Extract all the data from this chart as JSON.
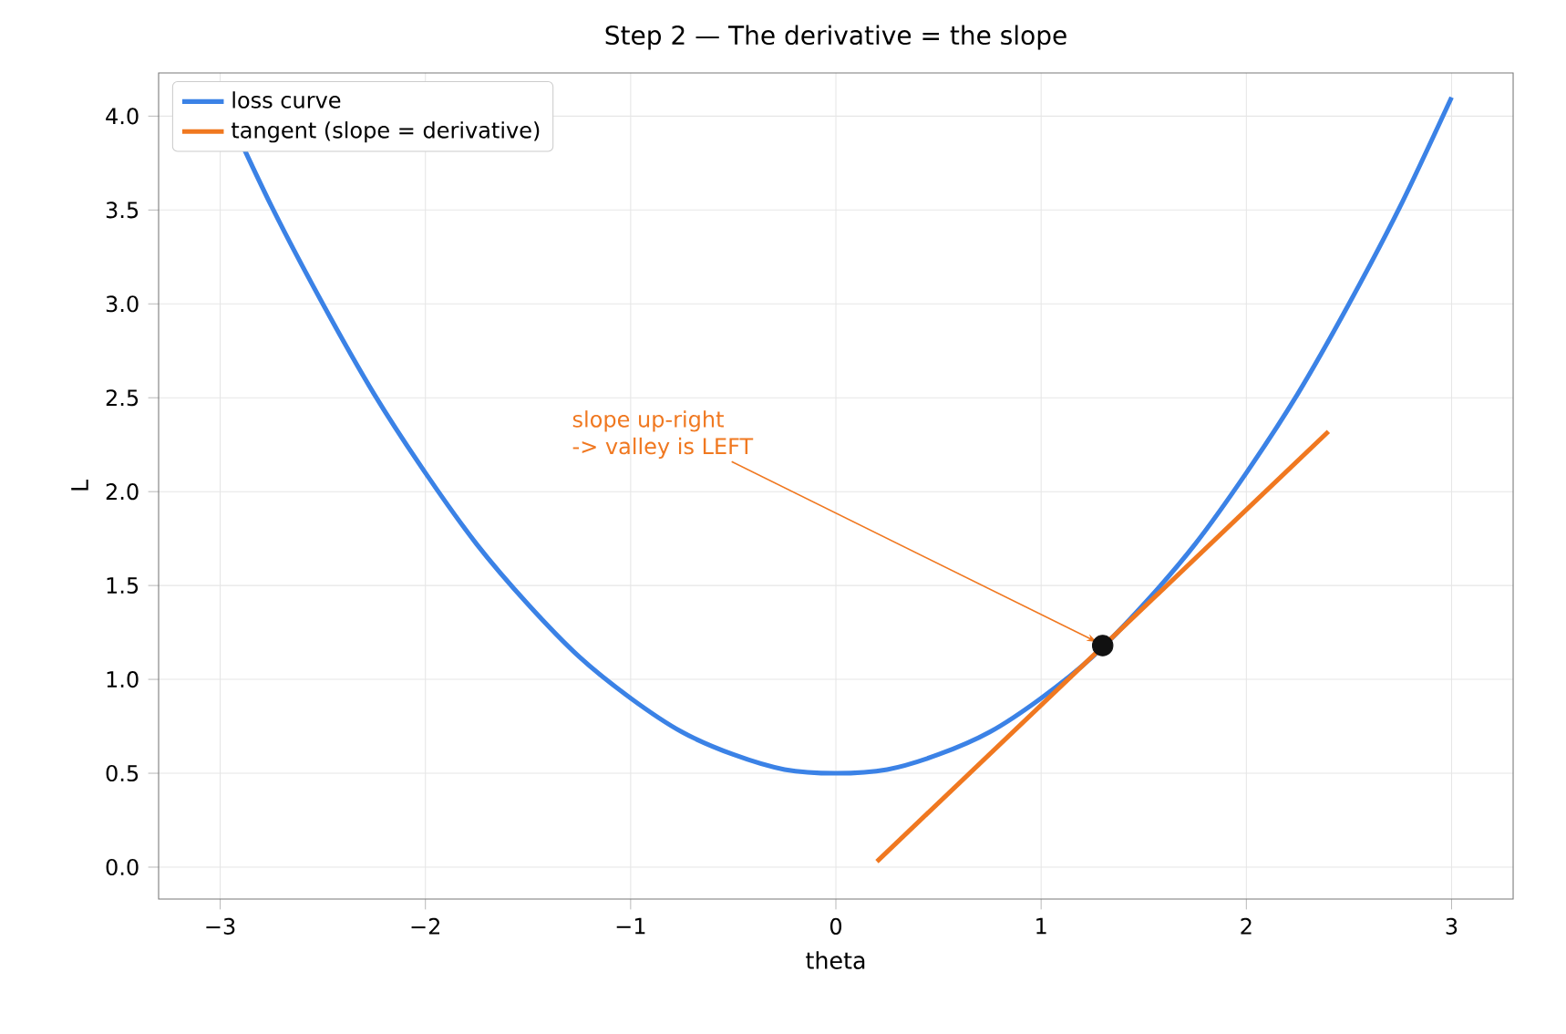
{
  "chart_data": {
    "type": "line",
    "title": "Step 2 — The derivative = the slope",
    "xlabel": "theta",
    "ylabel": "L",
    "series": [
      {
        "name": "loss curve",
        "color": "#3b82e6",
        "x": [
          -3,
          -2.75,
          -2.5,
          -2.25,
          -2,
          -1.75,
          -1.5,
          -1.25,
          -1,
          -0.75,
          -0.5,
          -0.25,
          0,
          0.25,
          0.5,
          0.75,
          1,
          1.25,
          1.5,
          1.75,
          2,
          2.25,
          2.5,
          2.75,
          3
        ],
        "values": [
          4.1,
          3.52,
          3.0,
          2.52,
          2.1,
          1.72,
          1.4,
          1.12,
          0.9,
          0.72,
          0.6,
          0.52,
          0.5,
          0.52,
          0.6,
          0.72,
          0.9,
          1.12,
          1.4,
          1.72,
          2.1,
          2.52,
          3.0,
          3.52,
          4.1
        ]
      },
      {
        "name": "tangent (slope = derivative)",
        "color": "#f07820",
        "x": [
          0.2,
          2.4
        ],
        "values": [
          0.03,
          2.32
        ]
      },
      {
        "type": "scatter",
        "color": "#111111",
        "marker": "circle",
        "x": [
          1.3
        ],
        "values": [
          1.18
        ]
      }
    ],
    "xlim": [
      -3.3,
      3.3
    ],
    "ylim": [
      -0.17,
      4.23
    ],
    "xticks": [
      {
        "value": -3,
        "label": "−3"
      },
      {
        "value": -2,
        "label": "−2"
      },
      {
        "value": -1,
        "label": "−1"
      },
      0,
      1,
      2,
      3
    ],
    "yticks": [
      {
        "value": 0,
        "label": "0.0"
      },
      0.5,
      {
        "value": 1,
        "label": "1.0"
      },
      1.5,
      {
        "value": 2,
        "label": "2.0"
      },
      2.5,
      {
        "value": 3,
        "label": "3.0"
      },
      3.5,
      {
        "value": 4,
        "label": "4.0"
      }
    ],
    "annotations": [
      "slope up-right",
      {
        "text": "-> valley is LEFT",
        "x": 1.3,
        "y": 1.18
      }
    ],
    "grid": true,
    "legend": "top left",
    "marker": "none",
    "line_style": "solid"
  }
}
